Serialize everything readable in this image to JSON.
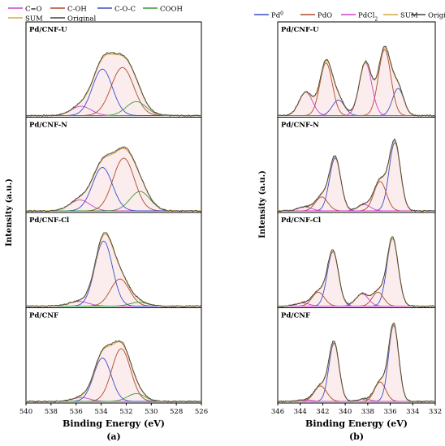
{
  "figure": {
    "ylabel": "Intensity (a.u.)",
    "xlabel": "Binding Energy (eV)"
  },
  "chart_data": [
    {
      "type": "line",
      "panel_label": "(a)",
      "xlabel": "Binding Energy (eV)",
      "ylabel": "Intensity (a.u.)",
      "xlim": [
        540,
        526
      ],
      "x_reversed": true,
      "xticks": [
        540,
        538,
        536,
        534,
        532,
        530,
        528,
        526
      ],
      "legend": {
        "placement": "top",
        "entries": [
          {
            "name": "C=O",
            "color": "#cc44cc"
          },
          {
            "name": "C-OH",
            "color": "#b04a2c"
          },
          {
            "name": "C-O-C",
            "color": "#3a4fc8"
          },
          {
            "name": "COOH",
            "color": "#3a9a3a"
          },
          {
            "name": "SUM",
            "color": "#d8a640"
          },
          {
            "name": "Original",
            "color": "#444444"
          }
        ]
      },
      "subplots": [
        {
          "label": "Pd/CNF-U",
          "peaks": [
            {
              "name": "C=O",
              "center": 535.6,
              "height": 0.12,
              "width": 0.8
            },
            {
              "name": "C-OH",
              "center": 532.3,
              "height": 0.62,
              "width": 0.9
            },
            {
              "name": "C-O-C",
              "center": 533.9,
              "height": 0.6,
              "width": 0.8
            },
            {
              "name": "COOH",
              "center": 531.2,
              "height": 0.18,
              "width": 0.8
            }
          ]
        },
        {
          "label": "Pd/CNF-N",
          "peaks": [
            {
              "name": "C=O",
              "center": 535.7,
              "height": 0.14,
              "width": 0.8
            },
            {
              "name": "C-OH",
              "center": 532.2,
              "height": 0.68,
              "width": 0.85
            },
            {
              "name": "C-O-C",
              "center": 533.9,
              "height": 0.56,
              "width": 0.8
            },
            {
              "name": "COOH",
              "center": 530.9,
              "height": 0.25,
              "width": 0.8
            }
          ]
        },
        {
          "label": "Pd/CNF-Cl",
          "peaks": [
            {
              "name": "C=O",
              "center": 535.8,
              "height": 0.06,
              "width": 0.8
            },
            {
              "name": "C-OH",
              "center": 532.5,
              "height": 0.35,
              "width": 0.75
            },
            {
              "name": "C-O-C",
              "center": 533.8,
              "height": 0.84,
              "width": 0.7
            },
            {
              "name": "COOH",
              "center": 531.0,
              "height": 0.05,
              "width": 0.7
            }
          ]
        },
        {
          "label": "Pd/CNF",
          "peaks": [
            {
              "name": "C=O",
              "center": 535.6,
              "height": 0.05,
              "width": 0.7
            },
            {
              "name": "C-OH",
              "center": 532.4,
              "height": 0.68,
              "width": 0.75
            },
            {
              "name": "C-O-C",
              "center": 533.9,
              "height": 0.56,
              "width": 0.7
            },
            {
              "name": "COOH",
              "center": 531.2,
              "height": 0.1,
              "width": 0.7
            }
          ]
        }
      ]
    },
    {
      "type": "line",
      "panel_label": "(b)",
      "xlabel": "Binding Energy (eV)",
      "ylabel": "Intensity (a.u.)",
      "xlim": [
        346,
        332
      ],
      "x_reversed": true,
      "xticks": [
        346,
        344,
        342,
        340,
        338,
        336,
        334,
        332
      ],
      "legend": {
        "placement": "top",
        "entries": [
          {
            "name": "Pd0",
            "color": "#3a4fc8"
          },
          {
            "name": "PdO",
            "color": "#b04a2c"
          },
          {
            "name": "PdCl2",
            "color": "#cc44cc"
          },
          {
            "name": "SUM",
            "color": "#d8a640"
          },
          {
            "name": "Original",
            "color": "#444444"
          }
        ]
      },
      "subplots": [
        {
          "label": "Pd/CNF-U",
          "peaks": [
            {
              "name": "Pd0",
              "center": 335.3,
              "height": 0.35,
              "width": 0.5
            },
            {
              "name": "Pd0",
              "center": 340.6,
              "height": 0.2,
              "width": 0.55
            },
            {
              "name": "PdO",
              "center": 336.5,
              "height": 0.85,
              "width": 0.55
            },
            {
              "name": "PdO",
              "center": 341.7,
              "height": 0.68,
              "width": 0.55
            },
            {
              "name": "PdCl2",
              "center": 338.2,
              "height": 0.68,
              "width": 0.55
            },
            {
              "name": "PdCl2",
              "center": 343.5,
              "height": 0.3,
              "width": 0.6
            }
          ]
        },
        {
          "label": "Pd/CNF-N",
          "peaks": [
            {
              "name": "Pd0",
              "center": 335.6,
              "height": 0.88,
              "width": 0.5
            },
            {
              "name": "Pd0",
              "center": 340.9,
              "height": 0.68,
              "width": 0.5
            },
            {
              "name": "PdO",
              "center": 336.9,
              "height": 0.38,
              "width": 0.55
            },
            {
              "name": "PdO",
              "center": 342.1,
              "height": 0.18,
              "width": 0.55
            },
            {
              "name": "PdCl2",
              "center": 338.3,
              "height": 0.08,
              "width": 0.55
            },
            {
              "name": "PdCl2",
              "center": 343.6,
              "height": 0.05,
              "width": 0.6
            }
          ]
        },
        {
          "label": "Pd/CNF-Cl",
          "peaks": [
            {
              "name": "Pd0",
              "center": 335.8,
              "height": 0.87,
              "width": 0.5
            },
            {
              "name": "Pd0",
              "center": 341.1,
              "height": 0.7,
              "width": 0.5
            },
            {
              "name": "PdO",
              "center": 337.1,
              "height": 0.18,
              "width": 0.5
            },
            {
              "name": "PdO",
              "center": 342.4,
              "height": 0.18,
              "width": 0.55
            },
            {
              "name": "PdCl2",
              "center": 338.5,
              "height": 0.16,
              "width": 0.55
            },
            {
              "name": "PdCl2",
              "center": 343.8,
              "height": 0.04,
              "width": 0.6
            }
          ]
        },
        {
          "label": "Pd/CNF",
          "peaks": [
            {
              "name": "Pd0",
              "center": 335.7,
              "height": 0.98,
              "width": 0.45
            },
            {
              "name": "Pd0",
              "center": 341.0,
              "height": 0.75,
              "width": 0.45
            },
            {
              "name": "PdO",
              "center": 336.9,
              "height": 0.25,
              "width": 0.5
            },
            {
              "name": "PdO",
              "center": 342.2,
              "height": 0.2,
              "width": 0.55
            },
            {
              "name": "PdCl2",
              "center": 338.3,
              "height": 0.03,
              "width": 0.55
            },
            {
              "name": "PdCl2",
              "center": 343.6,
              "height": 0.02,
              "width": 0.6
            }
          ]
        }
      ]
    }
  ]
}
